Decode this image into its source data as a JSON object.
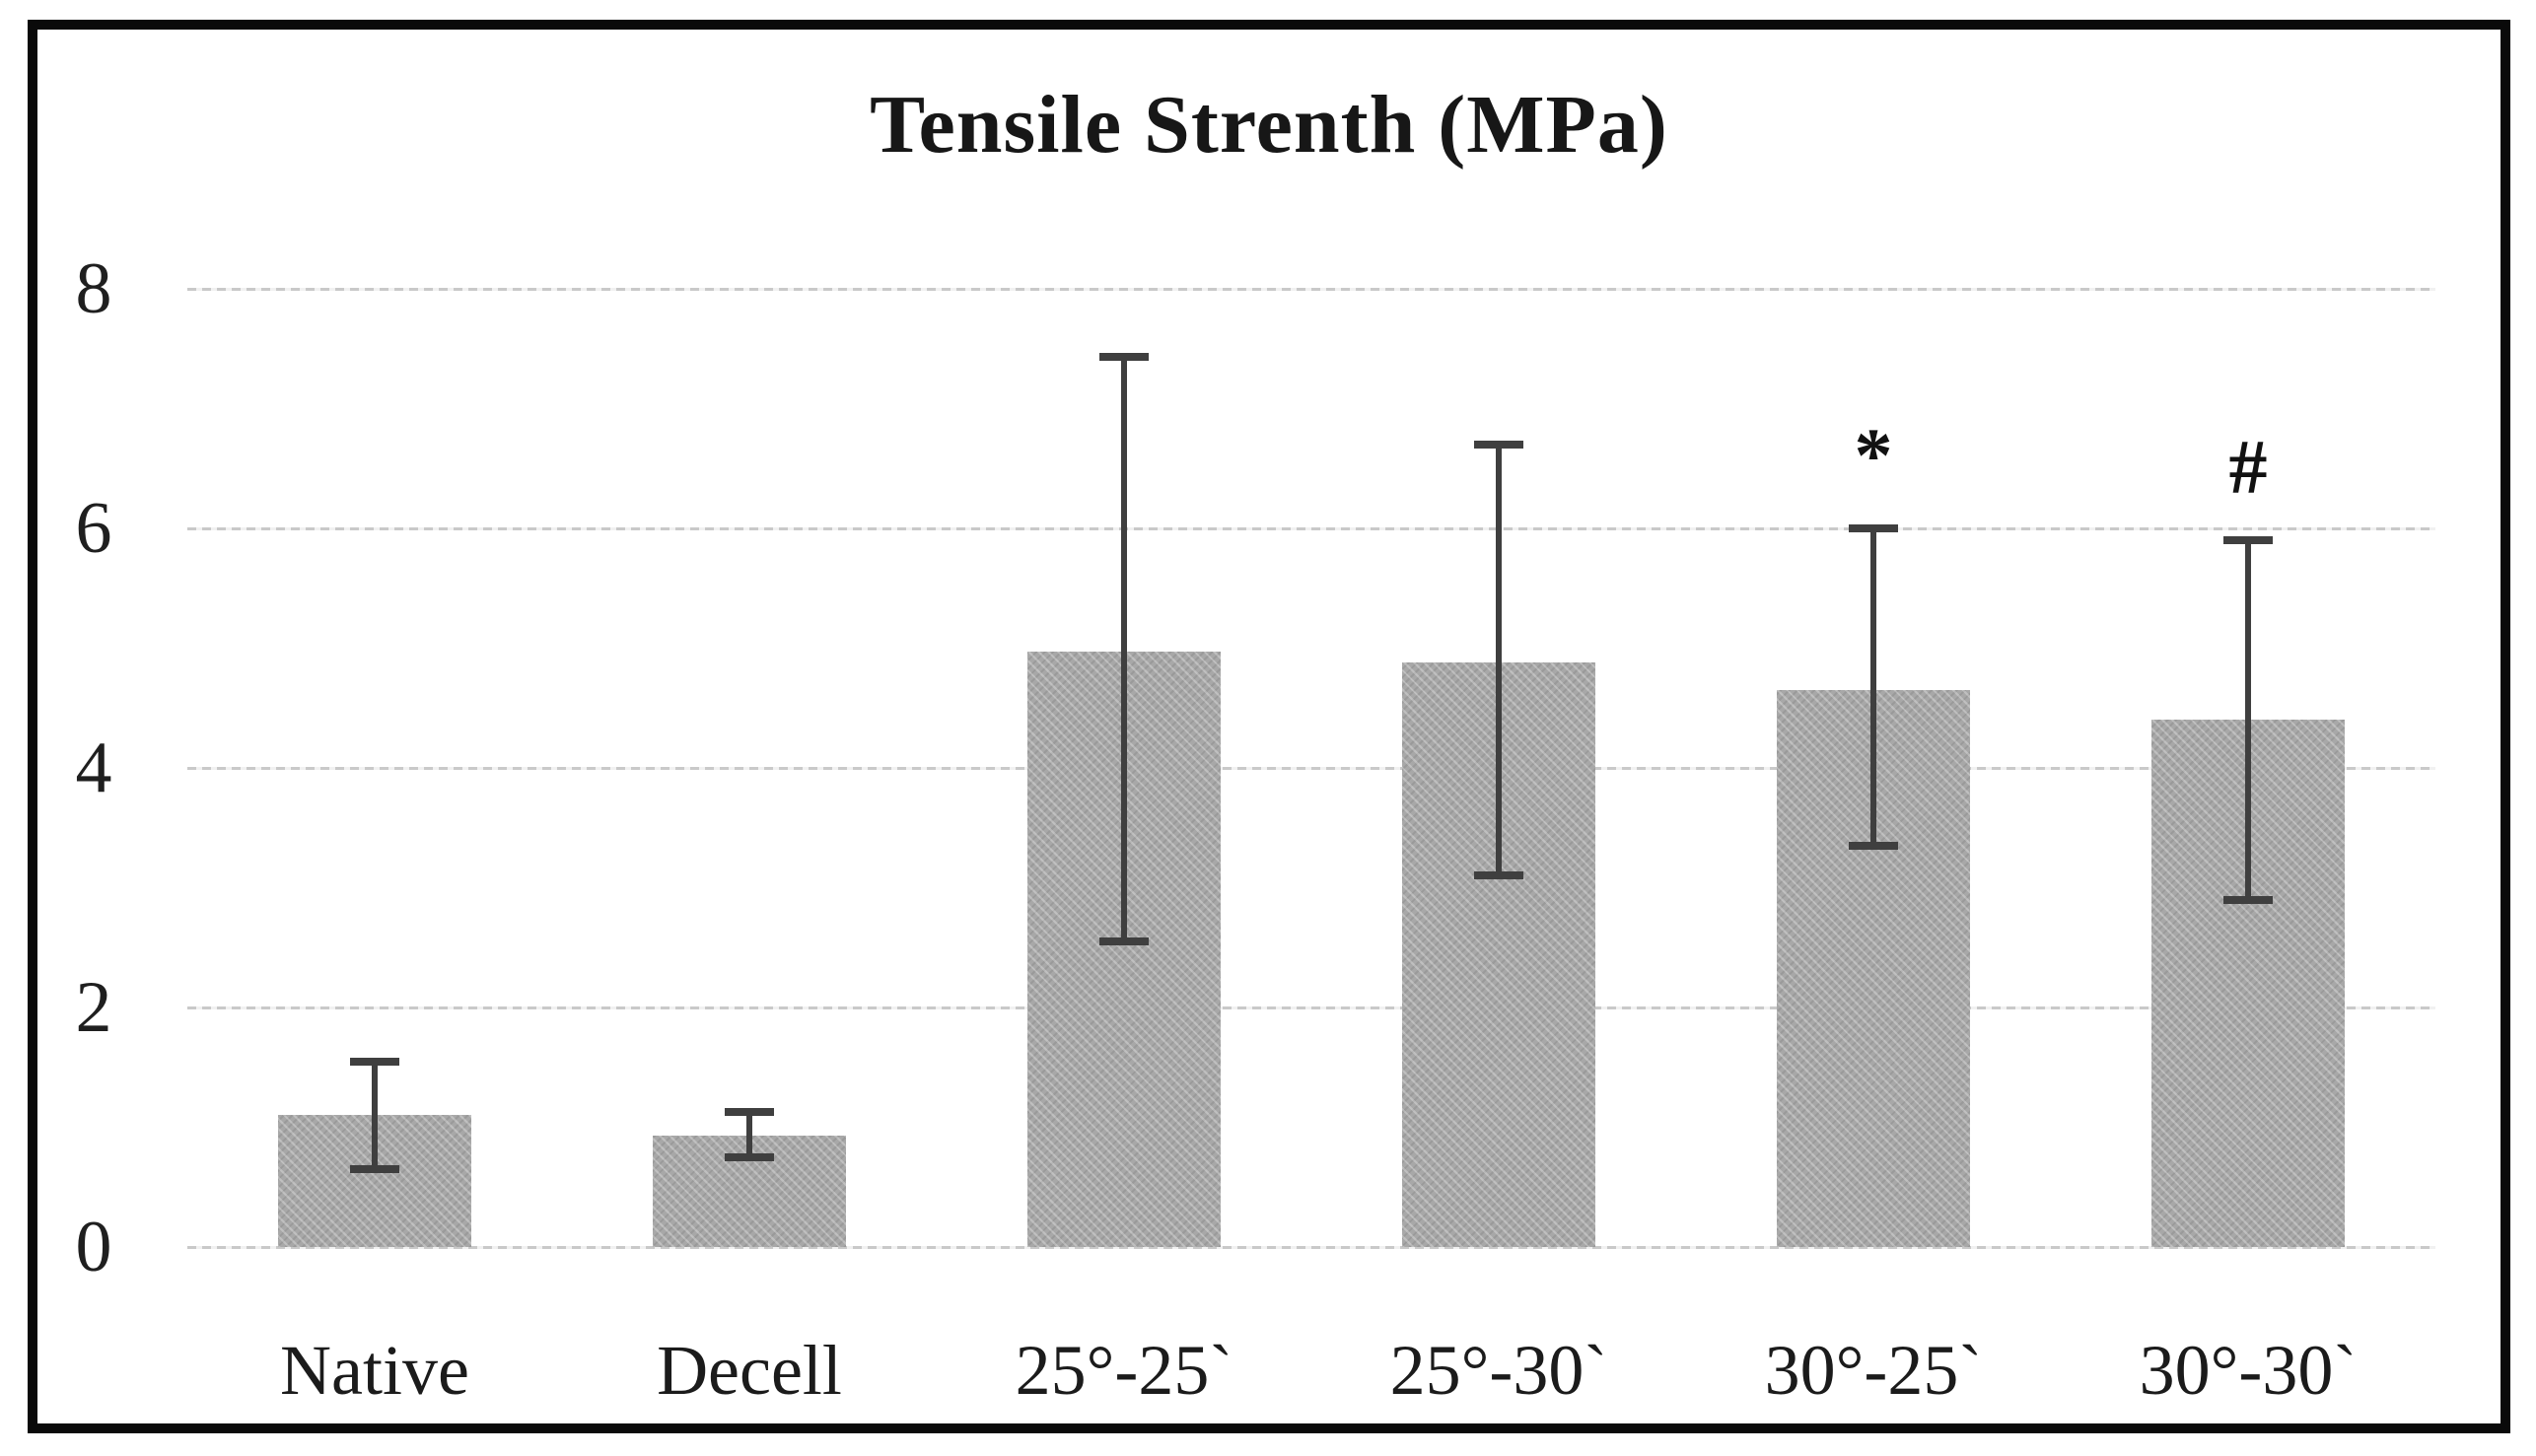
{
  "chart_data": {
    "type": "bar",
    "title": "Tensile Strenth (MPa)",
    "categories": [
      "Native",
      "Decell",
      "25°-25`",
      "25°-30`",
      "30°-25`",
      "30°-30`"
    ],
    "series": [
      {
        "name": "Tensile Strength (MPa)",
        "values": [
          1.1,
          0.93,
          4.97,
          4.88,
          4.65,
          4.4
        ]
      }
    ],
    "error_bars": {
      "upper_whisker": [
        1.55,
        1.13,
        7.43,
        6.7,
        6.0,
        5.9
      ],
      "lower_whisker": [
        0.65,
        0.75,
        2.55,
        3.1,
        3.35,
        2.9
      ]
    },
    "annotations": [
      {
        "category_index": 4,
        "text": "*"
      },
      {
        "category_index": 5,
        "text": "#"
      }
    ],
    "yticks": [
      0,
      2,
      4,
      6,
      8
    ],
    "ylim": [
      0,
      8.6
    ],
    "xlabel": "",
    "ylabel": "",
    "grid": true,
    "legend": false
  },
  "colors": {
    "bar_fill": "#a8a8a8",
    "error_bar": "#3f3f3f",
    "gridline": "#c9c9c9",
    "frame_border": "#0a0a0a",
    "text": "#1b1b1b"
  }
}
